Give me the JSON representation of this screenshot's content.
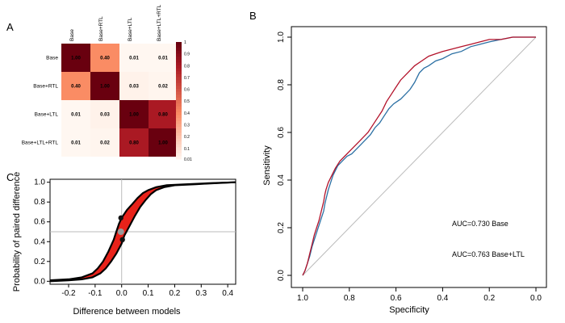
{
  "panels": {
    "a": "A",
    "b": "B",
    "c": "C"
  },
  "colors": {
    "base": "#2a6fa3",
    "ltl": "#b3122a",
    "ci_fill": "#e8221a",
    "curve": "#000000",
    "marker": "#111111",
    "marker_mid": "#999999"
  },
  "chart_data": [
    {
      "id": "A",
      "type": "heatmap",
      "row_labels": [
        "Base",
        "Base+RTL",
        "Base+LTL",
        "Base+LTL+RTL"
      ],
      "col_labels": [
        "Base",
        "Base+RTL",
        "Base+LTL",
        "Base+LTL+RTL"
      ],
      "matrix": [
        [
          1.0,
          0.4,
          0.01,
          0.01
        ],
        [
          0.4,
          1.0,
          0.03,
          0.02
        ],
        [
          0.01,
          0.03,
          1.0,
          0.8
        ],
        [
          0.01,
          0.02,
          0.8,
          1.0
        ]
      ],
      "cell_text": [
        [
          "1.00",
          "0.40",
          "0.01",
          "0.01"
        ],
        [
          "0.40",
          "1.00",
          "0.03",
          "0.02"
        ],
        [
          "0.01",
          "0.03",
          "1.00",
          "0.80"
        ],
        [
          "0.01",
          "0.02",
          "0.80",
          "1.00"
        ]
      ],
      "colorbar_labels": [
        "1",
        "0.9",
        "0.8",
        "0.7",
        "0.6",
        "0.5",
        "0.4",
        "0.3",
        "0.2",
        "0.1",
        "0.01"
      ],
      "colorbar_values": [
        1,
        0.9,
        0.8,
        0.7,
        0.6,
        0.5,
        0.4,
        0.3,
        0.2,
        0.1,
        0.01
      ],
      "value_range": [
        0.01,
        1
      ]
    },
    {
      "id": "B",
      "type": "line",
      "xlabel": "Specificity",
      "ylabel": "Sensitivity",
      "xlim": [
        1.0,
        0.0
      ],
      "ylim": [
        0.0,
        1.0
      ],
      "x_ticks": [
        "1.0",
        "0.8",
        "0.6",
        "0.4",
        "0.2",
        "0.0"
      ],
      "x_tick_values": [
        1.0,
        0.8,
        0.6,
        0.4,
        0.2,
        0.0
      ],
      "y_ticks": [
        "0.0",
        "0.2",
        "0.4",
        "0.6",
        "0.8",
        "1.0"
      ],
      "y_tick_values": [
        0.0,
        0.2,
        0.4,
        0.6,
        0.8,
        1.0
      ],
      "reference_line": [
        [
          1,
          0
        ],
        [
          0,
          1
        ]
      ],
      "series": [
        {
          "name": "Base",
          "label": "AUC=0.730 Base",
          "color": "#2a6fa3",
          "points": [
            [
              1.0,
              0.0
            ],
            [
              0.99,
              0.02
            ],
            [
              0.98,
              0.05
            ],
            [
              0.97,
              0.08
            ],
            [
              0.96,
              0.12
            ],
            [
              0.95,
              0.15
            ],
            [
              0.94,
              0.18
            ],
            [
              0.93,
              0.21
            ],
            [
              0.92,
              0.24
            ],
            [
              0.91,
              0.27
            ],
            [
              0.905,
              0.3
            ],
            [
              0.9,
              0.32
            ],
            [
              0.89,
              0.36
            ],
            [
              0.88,
              0.39
            ],
            [
              0.87,
              0.42
            ],
            [
              0.86,
              0.44
            ],
            [
              0.85,
              0.46
            ],
            [
              0.83,
              0.48
            ],
            [
              0.81,
              0.5
            ],
            [
              0.79,
              0.51
            ],
            [
              0.77,
              0.53
            ],
            [
              0.75,
              0.55
            ],
            [
              0.73,
              0.57
            ],
            [
              0.71,
              0.59
            ],
            [
              0.69,
              0.62
            ],
            [
              0.67,
              0.64
            ],
            [
              0.65,
              0.67
            ],
            [
              0.63,
              0.7
            ],
            [
              0.61,
              0.72
            ],
            [
              0.58,
              0.74
            ],
            [
              0.56,
              0.76
            ],
            [
              0.54,
              0.78
            ],
            [
              0.52,
              0.81
            ],
            [
              0.5,
              0.85
            ],
            [
              0.48,
              0.87
            ],
            [
              0.46,
              0.88
            ],
            [
              0.43,
              0.9
            ],
            [
              0.4,
              0.91
            ],
            [
              0.36,
              0.93
            ],
            [
              0.32,
              0.94
            ],
            [
              0.28,
              0.96
            ],
            [
              0.24,
              0.97
            ],
            [
              0.2,
              0.98
            ],
            [
              0.15,
              0.99
            ],
            [
              0.1,
              1.0
            ],
            [
              0.05,
              1.0
            ],
            [
              0.0,
              1.0
            ]
          ]
        },
        {
          "name": "Base+LTL",
          "label": "AUC=0.763 Base+LTL",
          "color": "#b3122a",
          "points": [
            [
              1.0,
              0.0
            ],
            [
              0.99,
              0.02
            ],
            [
              0.98,
              0.05
            ],
            [
              0.97,
              0.09
            ],
            [
              0.96,
              0.13
            ],
            [
              0.95,
              0.17
            ],
            [
              0.94,
              0.2
            ],
            [
              0.93,
              0.23
            ],
            [
              0.92,
              0.27
            ],
            [
              0.91,
              0.31
            ],
            [
              0.905,
              0.34
            ],
            [
              0.9,
              0.36
            ],
            [
              0.89,
              0.39
            ],
            [
              0.88,
              0.41
            ],
            [
              0.87,
              0.43
            ],
            [
              0.86,
              0.45
            ],
            [
              0.84,
              0.48
            ],
            [
              0.82,
              0.5
            ],
            [
              0.8,
              0.52
            ],
            [
              0.78,
              0.54
            ],
            [
              0.76,
              0.56
            ],
            [
              0.74,
              0.58
            ],
            [
              0.72,
              0.6
            ],
            [
              0.7,
              0.63
            ],
            [
              0.68,
              0.66
            ],
            [
              0.66,
              0.69
            ],
            [
              0.64,
              0.73
            ],
            [
              0.62,
              0.76
            ],
            [
              0.6,
              0.79
            ],
            [
              0.58,
              0.82
            ],
            [
              0.55,
              0.85
            ],
            [
              0.52,
              0.88
            ],
            [
              0.49,
              0.9
            ],
            [
              0.46,
              0.92
            ],
            [
              0.43,
              0.93
            ],
            [
              0.4,
              0.94
            ],
            [
              0.36,
              0.95
            ],
            [
              0.32,
              0.96
            ],
            [
              0.28,
              0.97
            ],
            [
              0.24,
              0.98
            ],
            [
              0.2,
              0.99
            ],
            [
              0.15,
              0.99
            ],
            [
              0.1,
              1.0
            ],
            [
              0.05,
              1.0
            ],
            [
              0.0,
              1.0
            ]
          ]
        }
      ]
    },
    {
      "id": "C",
      "type": "line",
      "xlabel": "Difference between models",
      "ylabel": "Probability of paired difference",
      "xlim": [
        -0.27,
        0.43
      ],
      "ylim": [
        -0.03,
        1.03
      ],
      "x_ticks": [
        "-0.2",
        "-0.1",
        "0.0",
        "0.1",
        "0.2",
        "0.3",
        "0.4"
      ],
      "x_tick_values": [
        -0.2,
        -0.1,
        0.0,
        0.1,
        0.2,
        0.3,
        0.4
      ],
      "y_ticks": [
        "0.0",
        "0.2",
        "0.4",
        "0.6",
        "0.8",
        "1.0"
      ],
      "y_tick_values": [
        0.0,
        0.2,
        0.4,
        0.6,
        0.8,
        1.0
      ],
      "reference_lines": {
        "vertical_x": 0.0,
        "horizontal_y": 0.5
      },
      "series": [
        {
          "name": "upper-bound",
          "points": [
            [
              -0.27,
              0.01
            ],
            [
              -0.2,
              0.02
            ],
            [
              -0.15,
              0.04
            ],
            [
              -0.11,
              0.08
            ],
            [
              -0.09,
              0.13
            ],
            [
              -0.07,
              0.2
            ],
            [
              -0.05,
              0.3
            ],
            [
              -0.03,
              0.42
            ],
            [
              -0.02,
              0.5
            ],
            [
              -0.01,
              0.58
            ],
            [
              0.0,
              0.64
            ],
            [
              0.02,
              0.72
            ],
            [
              0.04,
              0.78
            ],
            [
              0.06,
              0.84
            ],
            [
              0.08,
              0.89
            ],
            [
              0.1,
              0.92
            ],
            [
              0.13,
              0.95
            ],
            [
              0.17,
              0.97
            ],
            [
              0.25,
              0.98
            ],
            [
              0.33,
              0.99
            ],
            [
              0.43,
              1.0
            ]
          ]
        },
        {
          "name": "lower-bound",
          "points": [
            [
              -0.27,
              0.0
            ],
            [
              -0.2,
              0.01
            ],
            [
              -0.15,
              0.02
            ],
            [
              -0.11,
              0.04
            ],
            [
              -0.08,
              0.08
            ],
            [
              -0.06,
              0.13
            ],
            [
              -0.04,
              0.2
            ],
            [
              -0.02,
              0.28
            ],
            [
              0.0,
              0.38
            ],
            [
              0.01,
              0.46
            ],
            [
              0.03,
              0.56
            ],
            [
              0.05,
              0.66
            ],
            [
              0.07,
              0.75
            ],
            [
              0.09,
              0.82
            ],
            [
              0.11,
              0.88
            ],
            [
              0.13,
              0.92
            ],
            [
              0.16,
              0.95
            ],
            [
              0.2,
              0.97
            ],
            [
              0.28,
              0.98
            ],
            [
              0.35,
              0.99
            ],
            [
              0.43,
              1.0
            ]
          ]
        }
      ],
      "markers": [
        {
          "x": -0.003,
          "y": 0.64,
          "kind": "upper"
        },
        {
          "x": -0.003,
          "y": 0.5,
          "kind": "mid"
        },
        {
          "x": 0.003,
          "y": 0.42,
          "kind": "lower"
        }
      ]
    }
  ]
}
